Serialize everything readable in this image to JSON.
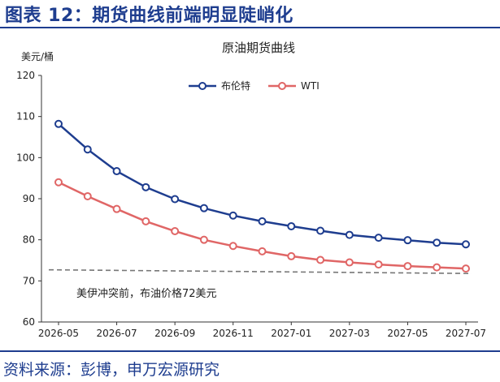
{
  "header": {
    "title": "图表 12：期货曲线前端明显陡峭化"
  },
  "footer": {
    "source": "资料来源：彭博，申万宏源研究"
  },
  "chart_data": {
    "type": "line",
    "title": "原油期货曲线",
    "ylabel": "美元/桶",
    "xlabel": "",
    "ylim": [
      60,
      120
    ],
    "yticks": [
      60,
      70,
      80,
      90,
      100,
      110,
      120
    ],
    "x_tick_labels": [
      "2026-05",
      "2026-07",
      "2026-09",
      "2026-11",
      "2027-01",
      "2027-03",
      "2027-05",
      "2027-07"
    ],
    "x": [
      "2026-05",
      "2026-06",
      "2026-07",
      "2026-08",
      "2026-09",
      "2026-10",
      "2026-11",
      "2026-12",
      "2027-01",
      "2027-02",
      "2027-03",
      "2027-04",
      "2027-05",
      "2027-06",
      "2027-07"
    ],
    "series": [
      {
        "name": "布伦特",
        "color": "#1e3d8f",
        "values": [
          108.2,
          102.0,
          96.7,
          92.8,
          89.9,
          87.7,
          85.9,
          84.5,
          83.3,
          82.2,
          81.2,
          80.5,
          79.9,
          79.3,
          78.9
        ]
      },
      {
        "name": "WTI",
        "color": "#e06666",
        "values": [
          94.0,
          90.6,
          87.5,
          84.5,
          82.1,
          80.0,
          78.5,
          77.2,
          76.0,
          75.1,
          74.5,
          74.0,
          73.6,
          73.3,
          73.0
        ]
      }
    ],
    "reference_line": {
      "values": [
        72.7,
        71.8
      ],
      "color": "#777777",
      "style": "dashed",
      "label": "美伊冲突前，布油价格72美元"
    },
    "legend_position": "top-center",
    "grid": false
  }
}
